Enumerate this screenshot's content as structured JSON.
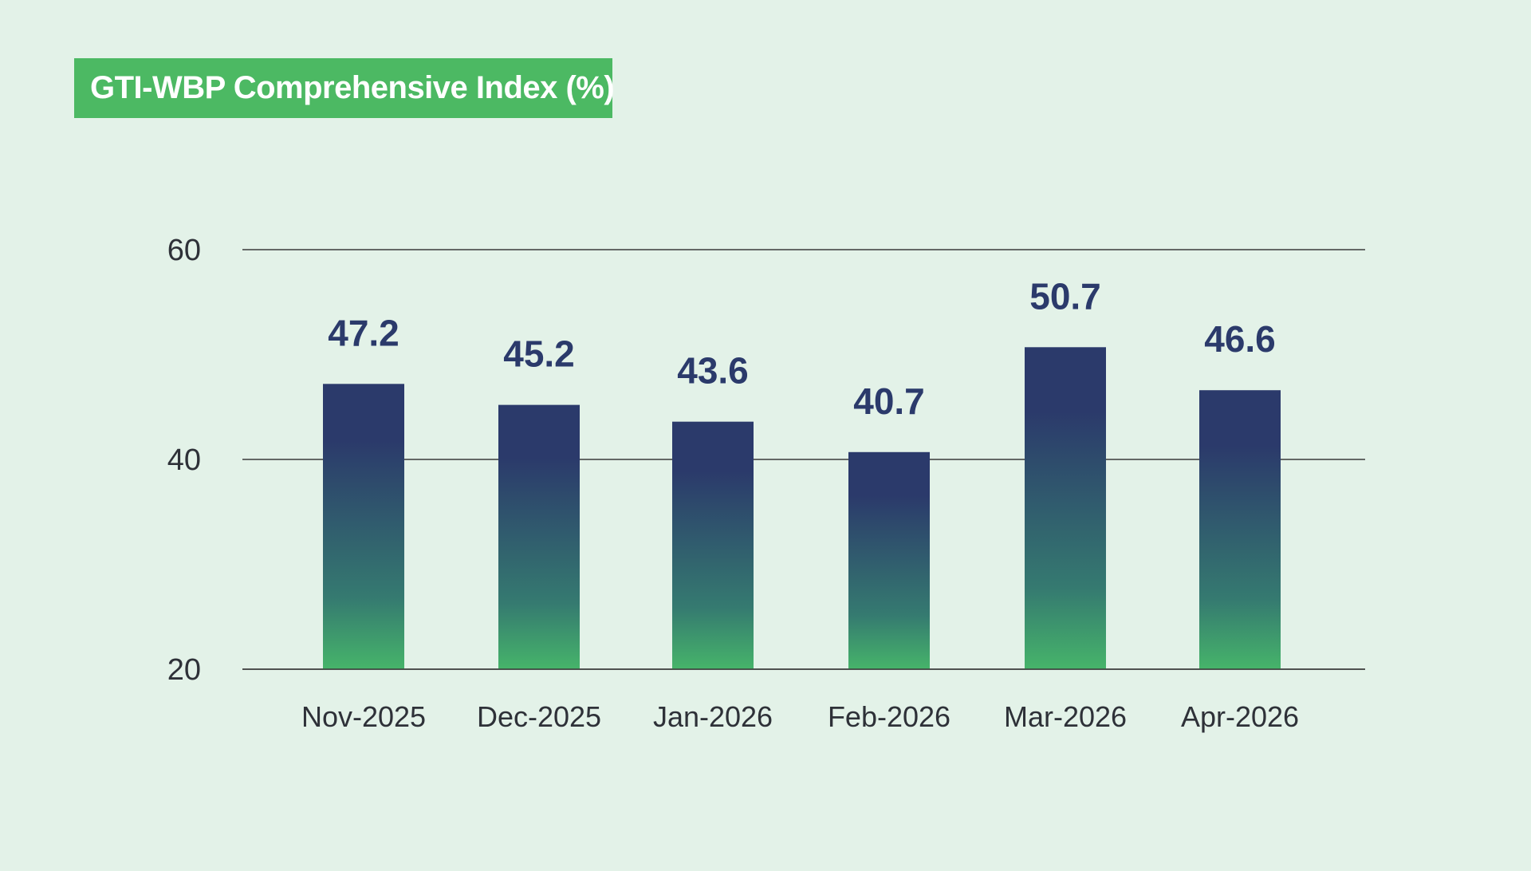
{
  "chart_data": {
    "type": "bar",
    "title": "GTI-WBP Comprehensive Index (%)",
    "categories": [
      "Nov-2025",
      "Dec-2025",
      "Jan-2026",
      "Feb-2026",
      "Mar-2026",
      "Apr-2026"
    ],
    "values": [
      47.2,
      45.2,
      43.6,
      40.7,
      50.7,
      46.6
    ],
    "value_labels": [
      "47.2",
      "45.2",
      "43.6",
      "40.7",
      "50.7",
      "46.6"
    ],
    "ylim": [
      20,
      60
    ],
    "yticks": [
      "20",
      "40",
      "60"
    ],
    "grid": true,
    "colors": {
      "background": "#e3f2e8",
      "title_box": "#4cb963",
      "bar_top": "#2b3a6b",
      "bar_bottom": "#46b46a",
      "value_text": "#2b3a6b",
      "axis_text": "#2e3138",
      "grid_line": "#3a3a3a"
    }
  }
}
